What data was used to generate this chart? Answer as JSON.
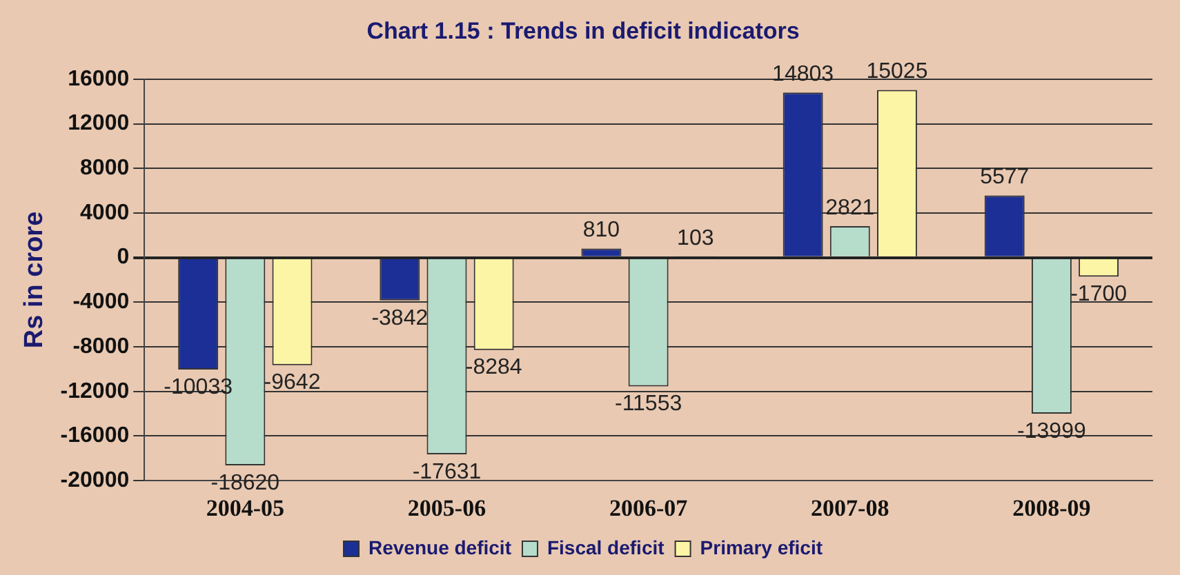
{
  "chart_data": {
    "type": "bar",
    "title": "Chart 1.15 : Trends in deficit indicators",
    "ylabel": "Rs in crore",
    "categories": [
      "2004-05",
      "2005-06",
      "2006-07",
      "2007-08",
      "2008-09"
    ],
    "series": [
      {
        "name": "Revenue deficit",
        "color": "#1c2f96",
        "values": [
          -10033,
          -3842,
          810,
          14803,
          5577
        ]
      },
      {
        "name": "Fiscal deficit",
        "color": "#b6dccb",
        "values": [
          -18620,
          -17631,
          -11553,
          2821,
          -13999
        ]
      },
      {
        "name": "Primary eficit",
        "color": "#fdf5a6",
        "values": [
          -9642,
          -8284,
          103,
          15025,
          -1700
        ]
      }
    ],
    "ylim": [
      -20000,
      16000
    ],
    "yticks": [
      -20000,
      -16000,
      -12000,
      -8000,
      -4000,
      0,
      4000,
      8000,
      12000,
      16000
    ],
    "grid": "y",
    "legend": "bottom",
    "data_labels": true
  }
}
